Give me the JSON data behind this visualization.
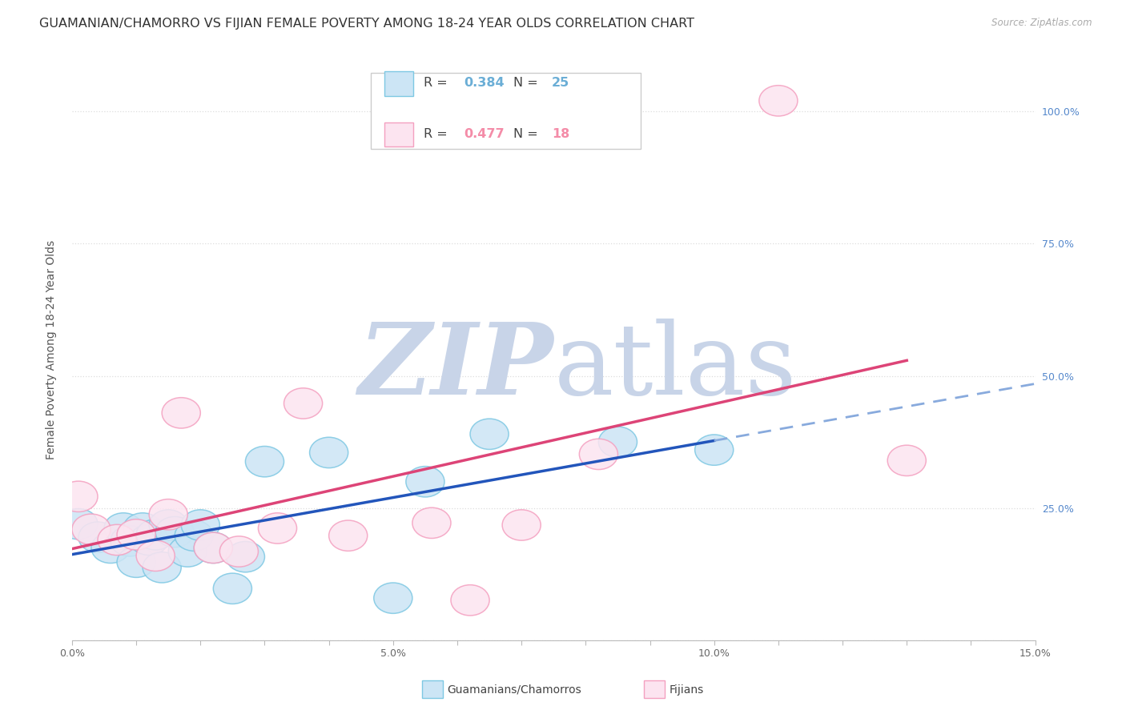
{
  "title": "GUAMANIAN/CHAMORRO VS FIJIAN FEMALE POVERTY AMONG 18-24 YEAR OLDS CORRELATION CHART",
  "source": "Source: ZipAtlas.com",
  "ylabel": "Female Poverty Among 18-24 Year Olds",
  "xlim": [
    0.0,
    0.15
  ],
  "ylim": [
    0.0,
    1.1
  ],
  "guamanian_R": "0.384",
  "guamanian_N": "25",
  "fijian_R": "0.477",
  "fijian_N": "18",
  "guamanian_edge": "#7ec8e3",
  "guamanian_fill": "#cce5f5",
  "fijian_edge": "#f4a0c0",
  "fijian_fill": "#fce4f0",
  "trend_blue_solid": "#2255bb",
  "trend_blue_dash": "#88aadd",
  "trend_pink": "#dd4477",
  "watermark_zip_color": "#c8d4e8",
  "watermark_atlas_color": "#c8d4e8",
  "background_color": "#ffffff",
  "grid_color": "#dddddd",
  "title_fontsize": 11.5,
  "label_fontsize": 10,
  "tick_fontsize": 9,
  "right_tick_color": "#5588cc",
  "guamanian_x": [
    0.001,
    0.004,
    0.006,
    0.008,
    0.009,
    0.01,
    0.011,
    0.012,
    0.013,
    0.014,
    0.015,
    0.016,
    0.018,
    0.019,
    0.02,
    0.022,
    0.025,
    0.027,
    0.03,
    0.04,
    0.05,
    0.055,
    0.065,
    0.085,
    0.1
  ],
  "guamanian_y": [
    0.22,
    0.195,
    0.175,
    0.212,
    0.188,
    0.148,
    0.212,
    0.19,
    0.2,
    0.138,
    0.218,
    0.205,
    0.168,
    0.198,
    0.218,
    0.175,
    0.098,
    0.158,
    0.338,
    0.355,
    0.08,
    0.3,
    0.39,
    0.375,
    0.36
  ],
  "fijian_x": [
    0.001,
    0.003,
    0.007,
    0.01,
    0.013,
    0.015,
    0.017,
    0.022,
    0.026,
    0.032,
    0.036,
    0.043,
    0.056,
    0.062,
    0.07,
    0.082,
    0.11,
    0.13
  ],
  "fijian_y": [
    0.272,
    0.21,
    0.19,
    0.2,
    0.16,
    0.238,
    0.43,
    0.175,
    0.168,
    0.212,
    0.448,
    0.198,
    0.222,
    0.076,
    0.218,
    0.352,
    1.02,
    0.34
  ],
  "legend_guam_color": "#6baed6",
  "legend_fijian_color": "#f48ca8"
}
